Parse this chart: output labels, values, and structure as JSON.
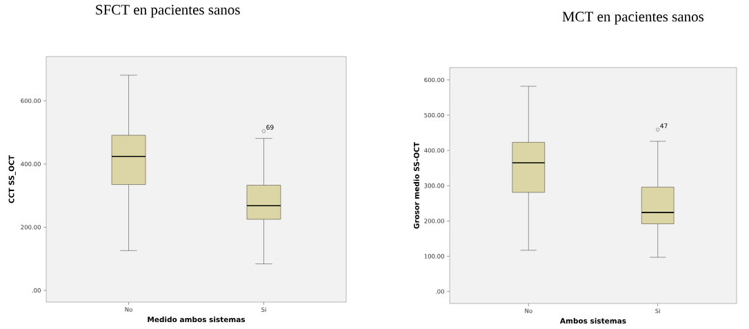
{
  "chart_data": [
    {
      "type": "box",
      "title": "SFCT en pacientes sanos",
      "xlabel": "Medido ambos sistemas",
      "ylabel": "CCT SS_OCT",
      "categories": [
        "No",
        "Si"
      ],
      "color": "#dcd6a6",
      "ylim": [
        -37,
        740
      ],
      "yticks": [
        {
          "value": 0,
          "label": ".00"
        },
        {
          "value": 200,
          "label": "200.00"
        },
        {
          "value": 400,
          "label": "400.00"
        },
        {
          "value": 600,
          "label": "600.00"
        }
      ],
      "boxes": [
        {
          "low": 126,
          "q1": 335,
          "median": 424,
          "q3": 491,
          "high": 681
        },
        {
          "low": 84,
          "q1": 225,
          "median": 268,
          "q3": 333,
          "high": 481,
          "outliers": [
            504
          ]
        }
      ],
      "annotations": [
        "69"
      ]
    },
    {
      "type": "box",
      "title": "MCT en pacientes sanos",
      "xlabel": "Ambos sistemas",
      "ylabel": "Grosor medio SS-OCT",
      "categories": [
        "No",
        "Si"
      ],
      "color": "#dcd6a6",
      "ylim": [
        -34,
        635
      ],
      "yticks": [
        {
          "value": 0,
          "label": ".00"
        },
        {
          "value": 100,
          "label": "100.00"
        },
        {
          "value": 200,
          "label": "200.00"
        },
        {
          "value": 300,
          "label": "300.00"
        },
        {
          "value": 400,
          "label": "400.00"
        },
        {
          "value": 500,
          "label": "500.00"
        },
        {
          "value": 600,
          "label": "600.00"
        }
      ],
      "boxes": [
        {
          "low": 117,
          "q1": 281,
          "median": 365,
          "q3": 423,
          "high": 582
        },
        {
          "low": 97,
          "q1": 192,
          "median": 224,
          "q3": 296,
          "high": 426,
          "outliers": [
            459
          ]
        }
      ],
      "annotations": [
        "47"
      ]
    }
  ]
}
